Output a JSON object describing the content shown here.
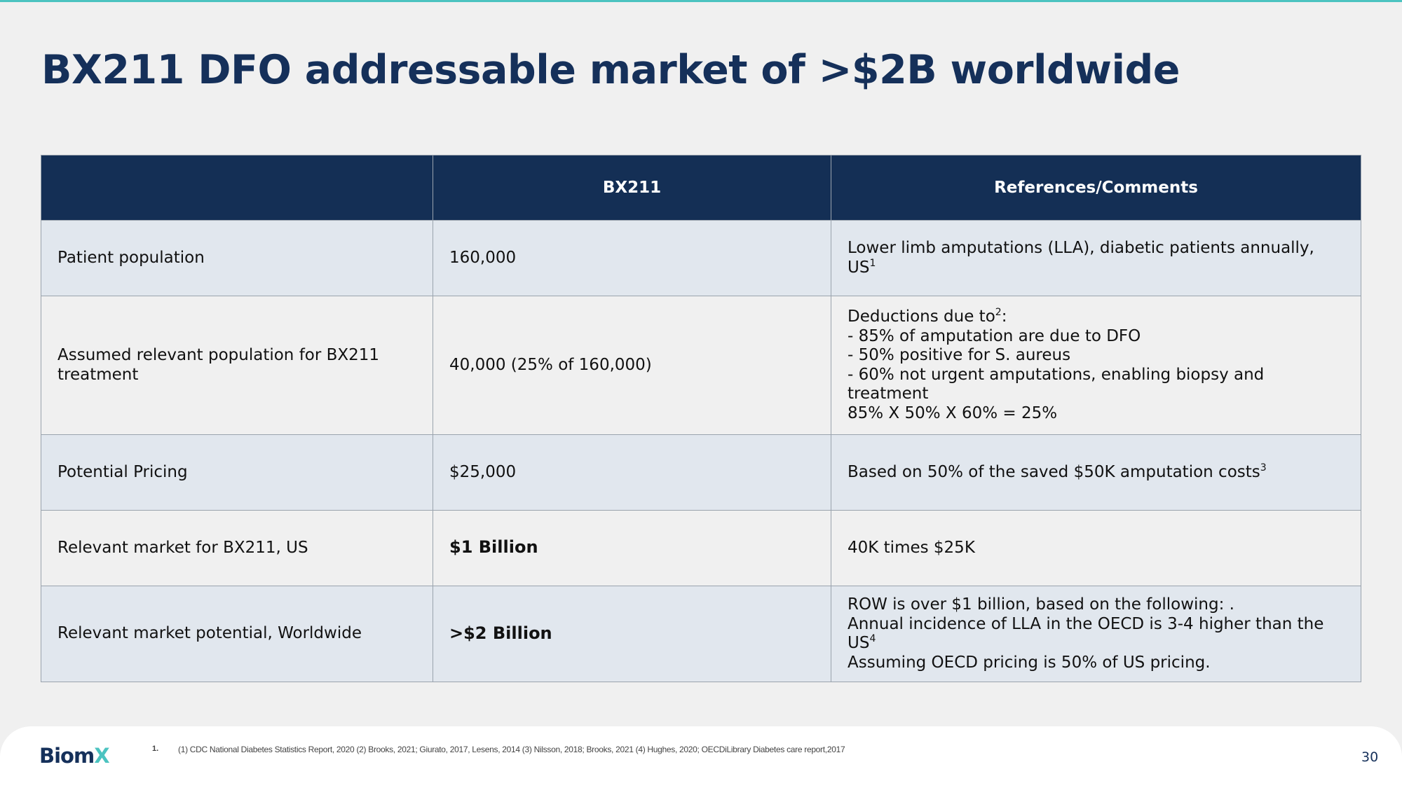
{
  "title": {
    "bold": "BX211",
    "rest": " DFO addressable market of >$2B worldwide"
  },
  "table": {
    "headers": [
      "",
      "BX211",
      "References/Comments"
    ],
    "rows": [
      {
        "label": "Patient population",
        "value": "160,000",
        "comment": {
          "text": "Lower limb amputations (LLA), diabetic patients annually, US",
          "sup": "1"
        }
      },
      {
        "label": "Assumed relevant population for BX211 treatment",
        "value": "40,000 (25% of 160,000)",
        "comment": {
          "intro": "Deductions due to",
          "intro_sup": "2",
          "intro_suffix": ":",
          "lines": [
            "- 85% of amputation are due to DFO",
            "- 50% positive for S. aureus",
            "- 60% not urgent amputations, enabling biopsy and treatment",
            "85% X 50% X 60% = 25%"
          ]
        }
      },
      {
        "label": "Potential Pricing",
        "value": "$25,000",
        "comment": {
          "text": "Based on 50% of the saved $50K amputation costs",
          "sup": "3"
        }
      },
      {
        "label": "Relevant market for BX211, US",
        "value": "$1 Billion",
        "comment": {
          "text": "40K times $25K"
        }
      },
      {
        "label": "Relevant market potential, Worldwide",
        "value": ">$2 Billion",
        "comment": {
          "line1": "ROW is over $1 billion, based on the following: .",
          "line2": "Annual incidence of LLA in the OECD is 3-4 higher than the US",
          "line2_sup": "4",
          "line3": "Assuming OECD pricing is 50% of US pricing."
        }
      }
    ]
  },
  "footer": {
    "logo_main": "Biom",
    "logo_accent": "X",
    "footnote_number": "1.",
    "footnote": "(1) CDC National Diabetes Statistics Report, 2020 (2) Brooks, 2021; Giurato, 2017, Lesens, 2014 (3) Nilsson, 2018; Brooks, 2021 (4) Hughes, 2020; OECDiLibrary Diabetes care report,2017",
    "page_number": "30"
  },
  "colors": {
    "navy": "#142f55",
    "accent": "#4cc3c0",
    "row_shade": "#e1e7ee",
    "background": "#f0f0f0"
  }
}
